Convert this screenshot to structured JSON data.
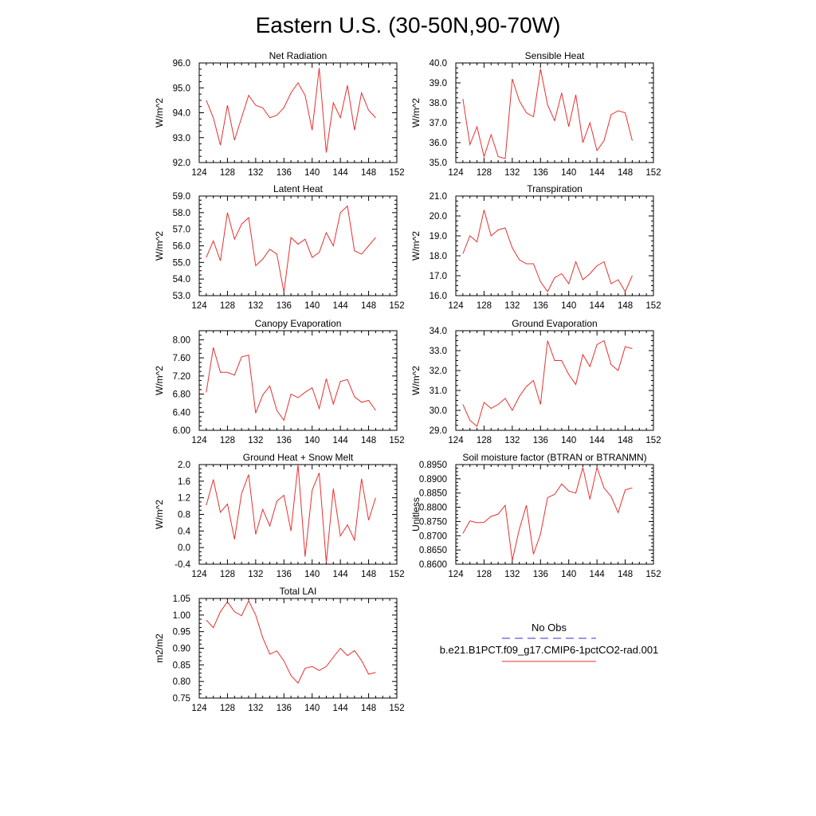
{
  "figure": {
    "title": "Eastern U.S. (30-50N,90-70W)"
  },
  "legend": {
    "entries": [
      {
        "label": "No Obs",
        "color": "#3333cc",
        "dash": true
      },
      {
        "label": "b.e21.B1PCT.f09_g17.CMIP6-1pctCO2-rad.001",
        "color": "#e83030",
        "dash": false
      }
    ]
  },
  "chart_data": [
    {
      "type": "line",
      "title": "Net Radiation",
      "xlabel": "",
      "ylabel": "W/m^2",
      "xlim": [
        124,
        152
      ],
      "ylim": [
        92.0,
        96.0
      ],
      "xticks": [
        124,
        128,
        132,
        136,
        140,
        144,
        148,
        152
      ],
      "yticks": [
        92.0,
        93.0,
        94.0,
        95.0,
        96.0
      ],
      "ydec": 1,
      "series": [
        {
          "color": "#e83030",
          "x": [
            125,
            126,
            127,
            128,
            129,
            130,
            131,
            132,
            133,
            134,
            135,
            136,
            137,
            138,
            139,
            140,
            141,
            142,
            143,
            144,
            145,
            146,
            147,
            148,
            149
          ],
          "y": [
            94.5,
            93.8,
            92.7,
            94.3,
            92.9,
            93.8,
            94.7,
            94.3,
            94.2,
            93.8,
            93.9,
            94.2,
            94.8,
            95.2,
            94.7,
            93.3,
            95.8,
            92.4,
            94.4,
            93.8,
            95.1,
            93.3,
            94.8,
            94.1,
            93.8
          ]
        }
      ]
    },
    {
      "type": "line",
      "title": "Sensible Heat",
      "xlabel": "",
      "ylabel": "W/m^2",
      "xlim": [
        124,
        152
      ],
      "ylim": [
        35.0,
        40.0
      ],
      "xticks": [
        124,
        128,
        132,
        136,
        140,
        144,
        148,
        152
      ],
      "yticks": [
        35.0,
        36.0,
        37.0,
        38.0,
        39.0,
        40.0
      ],
      "ydec": 1,
      "series": [
        {
          "color": "#e83030",
          "x": [
            125,
            126,
            127,
            128,
            129,
            130,
            131,
            132,
            133,
            134,
            135,
            136,
            137,
            138,
            139,
            140,
            141,
            142,
            143,
            144,
            145,
            146,
            147,
            148,
            149
          ],
          "y": [
            38.2,
            35.9,
            36.8,
            35.3,
            36.4,
            35.3,
            35.2,
            39.2,
            38.1,
            37.5,
            37.3,
            39.7,
            37.9,
            37.1,
            38.5,
            36.8,
            38.4,
            36.0,
            37.0,
            35.6,
            36.1,
            37.4,
            37.6,
            37.5,
            36.1
          ]
        }
      ]
    },
    {
      "type": "line",
      "title": "Latent Heat",
      "xlabel": "",
      "ylabel": "W/m^2",
      "xlim": [
        124,
        152
      ],
      "ylim": [
        53.0,
        59.0
      ],
      "xticks": [
        124,
        128,
        132,
        136,
        140,
        144,
        148,
        152
      ],
      "yticks": [
        53.0,
        54.0,
        55.0,
        56.0,
        57.0,
        58.0,
        59.0
      ],
      "ydec": 1,
      "series": [
        {
          "color": "#e83030",
          "x": [
            125,
            126,
            127,
            128,
            129,
            130,
            131,
            132,
            133,
            134,
            135,
            136,
            137,
            138,
            139,
            140,
            141,
            142,
            143,
            144,
            145,
            146,
            147,
            148,
            149
          ],
          "y": [
            55.3,
            56.3,
            55.1,
            58.0,
            56.4,
            57.3,
            57.7,
            54.8,
            55.2,
            55.8,
            55.5,
            53.2,
            56.5,
            56.1,
            56.4,
            55.3,
            55.6,
            56.8,
            56.0,
            58.0,
            58.4,
            55.7,
            55.5,
            56.0,
            56.5
          ]
        }
      ]
    },
    {
      "type": "line",
      "title": "Transpiration",
      "xlabel": "",
      "ylabel": "W/m^2",
      "xlim": [
        124,
        152
      ],
      "ylim": [
        16.0,
        21.0
      ],
      "xticks": [
        124,
        128,
        132,
        136,
        140,
        144,
        148,
        152
      ],
      "yticks": [
        16.0,
        17.0,
        18.0,
        19.0,
        20.0,
        21.0
      ],
      "ydec": 1,
      "series": [
        {
          "color": "#e83030",
          "x": [
            125,
            126,
            127,
            128,
            129,
            130,
            131,
            132,
            133,
            134,
            135,
            136,
            137,
            138,
            139,
            140,
            141,
            142,
            143,
            144,
            145,
            146,
            147,
            148,
            149
          ],
          "y": [
            18.1,
            19.0,
            18.7,
            20.3,
            19.0,
            19.3,
            19.4,
            18.4,
            17.8,
            17.6,
            17.6,
            16.7,
            16.2,
            16.9,
            17.1,
            16.6,
            17.7,
            16.8,
            17.1,
            17.5,
            17.7,
            16.6,
            16.8,
            16.2,
            17.0
          ]
        }
      ]
    },
    {
      "type": "line",
      "title": "Canopy Evaporation",
      "xlabel": "",
      "ylabel": "W/m^2",
      "xlim": [
        124,
        152
      ],
      "ylim": [
        6.0,
        8.2
      ],
      "xticks": [
        124,
        128,
        132,
        136,
        140,
        144,
        148,
        152
      ],
      "yticks": [
        6.0,
        6.4,
        6.8,
        7.2,
        7.6,
        8.0
      ],
      "ydec": 2,
      "series": [
        {
          "color": "#e83030",
          "x": [
            125,
            126,
            127,
            128,
            129,
            130,
            131,
            132,
            133,
            134,
            135,
            136,
            137,
            138,
            139,
            140,
            141,
            142,
            143,
            144,
            145,
            146,
            147,
            148,
            149
          ],
          "y": [
            6.84,
            7.83,
            7.28,
            7.28,
            7.22,
            7.62,
            7.66,
            6.38,
            6.78,
            6.98,
            6.44,
            6.22,
            6.8,
            6.72,
            6.84,
            6.94,
            6.48,
            7.14,
            6.58,
            7.08,
            7.12,
            6.74,
            6.62,
            6.66,
            6.44
          ]
        }
      ]
    },
    {
      "type": "line",
      "title": "Ground Evaporation",
      "xlabel": "",
      "ylabel": "W/m^2",
      "xlim": [
        124,
        152
      ],
      "ylim": [
        29.0,
        34.0
      ],
      "xticks": [
        124,
        128,
        132,
        136,
        140,
        144,
        148,
        152
      ],
      "yticks": [
        29.0,
        30.0,
        31.0,
        32.0,
        33.0,
        34.0
      ],
      "ydec": 1,
      "series": [
        {
          "color": "#e83030",
          "x": [
            125,
            126,
            127,
            128,
            129,
            130,
            131,
            132,
            133,
            134,
            135,
            136,
            137,
            138,
            139,
            140,
            141,
            142,
            143,
            144,
            145,
            146,
            147,
            148,
            149
          ],
          "y": [
            30.3,
            29.5,
            29.2,
            30.4,
            30.1,
            30.3,
            30.6,
            30.0,
            30.7,
            31.2,
            31.5,
            30.3,
            33.5,
            32.5,
            32.5,
            31.8,
            31.3,
            32.8,
            32.2,
            33.3,
            33.5,
            32.3,
            32.0,
            33.2,
            33.1
          ]
        }
      ]
    },
    {
      "type": "line",
      "title": "Ground Heat + Snow Melt",
      "xlabel": "",
      "ylabel": "W/m^2",
      "xlim": [
        124,
        152
      ],
      "ylim": [
        -0.4,
        2.0
      ],
      "xticks": [
        124,
        128,
        132,
        136,
        140,
        144,
        148,
        152
      ],
      "yticks": [
        -0.4,
        0.0,
        0.4,
        0.8,
        1.2,
        1.6,
        2.0
      ],
      "ydec": 1,
      "series": [
        {
          "color": "#e83030",
          "x": [
            125,
            126,
            127,
            128,
            129,
            130,
            131,
            132,
            133,
            134,
            135,
            136,
            137,
            138,
            139,
            140,
            141,
            142,
            143,
            144,
            145,
            146,
            147,
            148,
            149
          ],
          "y": [
            1.02,
            1.64,
            0.85,
            1.05,
            0.2,
            1.3,
            1.76,
            0.32,
            0.92,
            0.52,
            1.12,
            1.26,
            0.4,
            2.0,
            -0.22,
            1.38,
            1.8,
            -0.36,
            1.42,
            0.28,
            0.55,
            0.18,
            1.66,
            0.66,
            1.2
          ]
        }
      ]
    },
    {
      "type": "line",
      "title": "Soil moisture factor (BTRAN or BTRANMN)",
      "xlabel": "",
      "ylabel": "Unitless",
      "xlim": [
        124,
        152
      ],
      "ylim": [
        0.86,
        0.895
      ],
      "xticks": [
        124,
        128,
        132,
        136,
        140,
        144,
        148,
        152
      ],
      "yticks": [
        0.86,
        0.865,
        0.87,
        0.875,
        0.88,
        0.885,
        0.89,
        0.895
      ],
      "ydec": 4,
      "series": [
        {
          "color": "#e83030",
          "x": [
            125,
            126,
            127,
            128,
            129,
            130,
            131,
            132,
            133,
            134,
            135,
            136,
            137,
            138,
            139,
            140,
            141,
            142,
            143,
            144,
            145,
            146,
            147,
            148,
            149
          ],
          "y": [
            0.8708,
            0.8752,
            0.8746,
            0.8747,
            0.8768,
            0.8776,
            0.8807,
            0.8613,
            0.8723,
            0.8807,
            0.8635,
            0.8706,
            0.8834,
            0.8845,
            0.8882,
            0.8857,
            0.885,
            0.894,
            0.8828,
            0.894,
            0.8868,
            0.8838,
            0.8781,
            0.8861,
            0.8868
          ]
        }
      ]
    },
    {
      "type": "line",
      "title": "Total LAI",
      "xlabel": "",
      "ylabel": "m2/m2",
      "xlim": [
        124,
        152
      ],
      "ylim": [
        0.75,
        1.05
      ],
      "xticks": [
        124,
        128,
        132,
        136,
        140,
        144,
        148,
        152
      ],
      "yticks": [
        0.75,
        0.8,
        0.85,
        0.9,
        0.95,
        1.0,
        1.05
      ],
      "ydec": 2,
      "series": [
        {
          "color": "#e83030",
          "x": [
            125,
            126,
            127,
            128,
            129,
            130,
            131,
            132,
            133,
            134,
            135,
            136,
            137,
            138,
            139,
            140,
            141,
            142,
            143,
            144,
            145,
            146,
            147,
            148,
            149
          ],
          "y": [
            0.985,
            0.962,
            1.01,
            1.04,
            1.01,
            0.998,
            1.043,
            1.0,
            0.932,
            0.882,
            0.892,
            0.862,
            0.818,
            0.795,
            0.84,
            0.845,
            0.833,
            0.845,
            0.873,
            0.9,
            0.878,
            0.893,
            0.863,
            0.822,
            0.827
          ]
        }
      ]
    }
  ]
}
